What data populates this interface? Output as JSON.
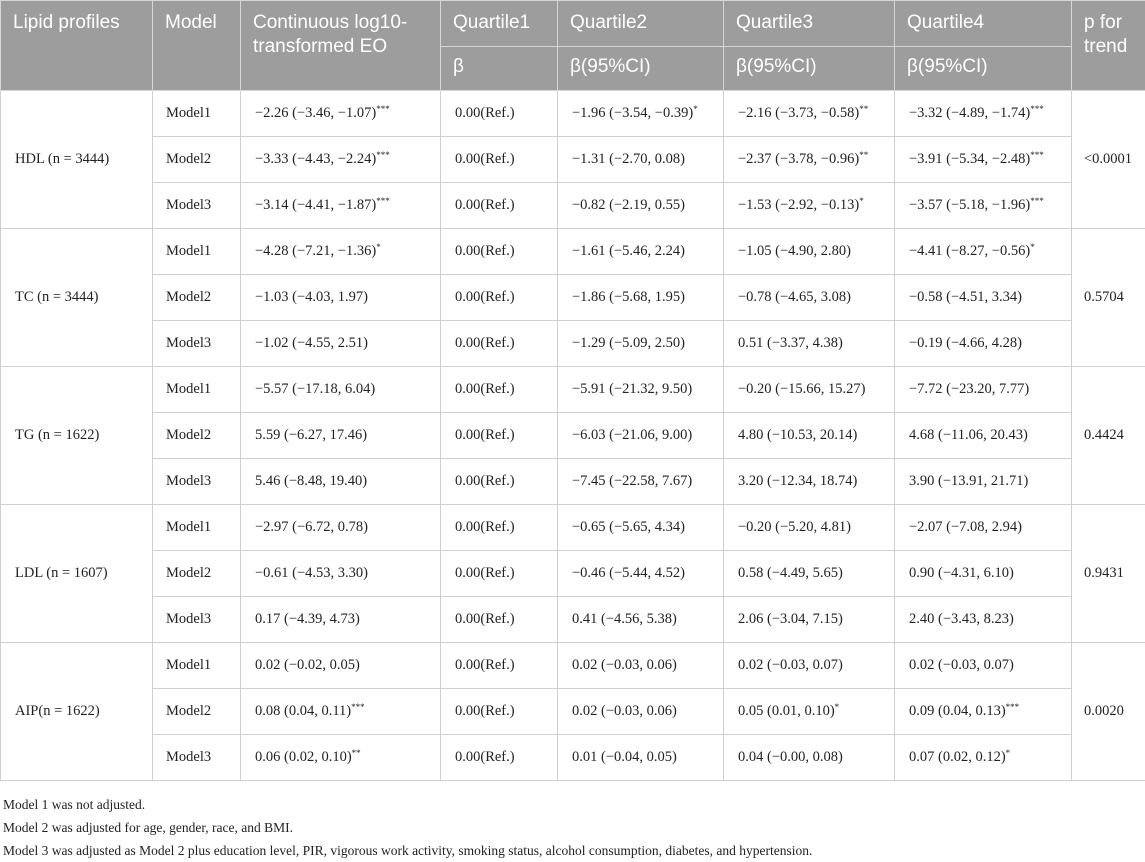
{
  "headers": {
    "lipid": "Lipid profiles",
    "model": "Model",
    "continuous": "Continuous log10-transformed EO",
    "q1": "Quartile1",
    "q2": "Quartile2",
    "q3": "Quartile3",
    "q4": "Quartile4",
    "ptrend": "p for trend",
    "q1_sub": "β",
    "q2_sub": "β(95%CI)",
    "q3_sub": "β(95%CI)",
    "q4_sub": "β(95%CI)"
  },
  "groups": [
    {
      "name": "HDL (n = 3444)",
      "p_trend": "<0.0001",
      "rows": [
        {
          "model": "Model1",
          "continuous": "−2.26 (−3.46, −1.07)",
          "continuous_sig": "***",
          "q1": "0.00(Ref.)",
          "q2": "−1.96 (−3.54, −0.39)",
          "q2_sig": "*",
          "q3": "−2.16 (−3.73, −0.58)",
          "q3_sig": "**",
          "q4": "−3.32 (−4.89, −1.74)",
          "q4_sig": "***"
        },
        {
          "model": "Model2",
          "continuous": "−3.33 (−4.43, −2.24)",
          "continuous_sig": "***",
          "q1": "0.00(Ref.)",
          "q2": "−1.31 (−2.70, 0.08)",
          "q2_sig": "",
          "q3": "−2.37 (−3.78, −0.96)",
          "q3_sig": "**",
          "q4": "−3.91 (−5.34, −2.48)",
          "q4_sig": "***"
        },
        {
          "model": "Model3",
          "continuous": "−3.14 (−4.41, −1.87)",
          "continuous_sig": "***",
          "q1": "0.00(Ref.)",
          "q2": "−0.82 (−2.19, 0.55)",
          "q2_sig": "",
          "q3": "−1.53 (−2.92, −0.13)",
          "q3_sig": "*",
          "q4": "−3.57 (−5.18, −1.96)",
          "q4_sig": "***"
        }
      ]
    },
    {
      "name": "TC (n = 3444)",
      "p_trend": "0.5704",
      "rows": [
        {
          "model": "Model1",
          "continuous": "−4.28 (−7.21, −1.36)",
          "continuous_sig": "*",
          "q1": "0.00(Ref.)",
          "q2": "−1.61 (−5.46, 2.24)",
          "q2_sig": "",
          "q3": "−1.05 (−4.90, 2.80)",
          "q3_sig": "",
          "q4": "−4.41 (−8.27, −0.56)",
          "q4_sig": "*"
        },
        {
          "model": "Model2",
          "continuous": "−1.03 (−4.03, 1.97)",
          "continuous_sig": "",
          "q1": "0.00(Ref.)",
          "q2": "−1.86 (−5.68, 1.95)",
          "q2_sig": "",
          "q3": "−0.78 (−4.65, 3.08)",
          "q3_sig": "",
          "q4": "−0.58 (−4.51, 3.34)",
          "q4_sig": ""
        },
        {
          "model": "Model3",
          "continuous": "−1.02 (−4.55, 2.51)",
          "continuous_sig": "",
          "q1": "0.00(Ref.)",
          "q2": "−1.29 (−5.09, 2.50)",
          "q2_sig": "",
          "q3": "0.51 (−3.37, 4.38)",
          "q3_sig": "",
          "q4": "−0.19 (−4.66, 4.28)",
          "q4_sig": ""
        }
      ]
    },
    {
      "name": "TG (n = 1622)",
      "p_trend": "0.4424",
      "rows": [
        {
          "model": "Model1",
          "continuous": "−5.57 (−17.18, 6.04)",
          "continuous_sig": "",
          "q1": "0.00(Ref.)",
          "q2": "−5.91 (−21.32, 9.50)",
          "q2_sig": "",
          "q3": "−0.20 (−15.66, 15.27)",
          "q3_sig": "",
          "q4": "−7.72 (−23.20, 7.77)",
          "q4_sig": ""
        },
        {
          "model": "Model2",
          "continuous": "5.59 (−6.27, 17.46)",
          "continuous_sig": "",
          "q1": "0.00(Ref.)",
          "q2": "−6.03 (−21.06, 9.00)",
          "q2_sig": "",
          "q3": "4.80 (−10.53, 20.14)",
          "q3_sig": "",
          "q4": "4.68 (−11.06, 20.43)",
          "q4_sig": ""
        },
        {
          "model": "Model3",
          "continuous": "5.46 (−8.48, 19.40)",
          "continuous_sig": "",
          "q1": "0.00(Ref.)",
          "q2": "−7.45 (−22.58, 7.67)",
          "q2_sig": "",
          "q3": "3.20 (−12.34, 18.74)",
          "q3_sig": "",
          "q4": "3.90 (−13.91, 21.71)",
          "q4_sig": ""
        }
      ]
    },
    {
      "name": "LDL (n = 1607)",
      "p_trend": "0.9431",
      "rows": [
        {
          "model": "Model1",
          "continuous": "−2.97 (−6.72, 0.78)",
          "continuous_sig": "",
          "q1": "0.00(Ref.)",
          "q2": "−0.65 (−5.65, 4.34)",
          "q2_sig": "",
          "q3": "−0.20 (−5.20, 4.81)",
          "q3_sig": "",
          "q4": "−2.07 (−7.08, 2.94)",
          "q4_sig": ""
        },
        {
          "model": "Model2",
          "continuous": "−0.61 (−4.53, 3.30)",
          "continuous_sig": "",
          "q1": "0.00(Ref.)",
          "q2": "−0.46 (−5.44, 4.52)",
          "q2_sig": "",
          "q3": "0.58 (−4.49, 5.65)",
          "q3_sig": "",
          "q4": "0.90 (−4.31, 6.10)",
          "q4_sig": ""
        },
        {
          "model": "Model3",
          "continuous": "0.17 (−4.39, 4.73)",
          "continuous_sig": "",
          "q1": "0.00(Ref.)",
          "q2": "0.41 (−4.56, 5.38)",
          "q2_sig": "",
          "q3": "2.06 (−3.04, 7.15)",
          "q3_sig": "",
          "q4": "2.40 (−3.43, 8.23)",
          "q4_sig": ""
        }
      ]
    },
    {
      "name": "AIP(n = 1622)",
      "p_trend": "0.0020",
      "rows": [
        {
          "model": "Model1",
          "continuous": "0.02 (−0.02, 0.05)",
          "continuous_sig": "",
          "q1": "0.00(Ref.)",
          "q2": "0.02 (−0.03, 0.06)",
          "q2_sig": "",
          "q3": "0.02 (−0.03, 0.07)",
          "q3_sig": "",
          "q4": "0.02 (−0.03, 0.07)",
          "q4_sig": ""
        },
        {
          "model": "Model2",
          "continuous": "0.08 (0.04, 0.11)",
          "continuous_sig": "***",
          "q1": "0.00(Ref.)",
          "q2": "0.02 (−0.03, 0.06)",
          "q2_sig": "",
          "q3": "0.05 (0.01, 0.10)",
          "q3_sig": "*",
          "q4": "0.09 (0.04, 0.13)",
          "q4_sig": "***"
        },
        {
          "model": "Model3",
          "continuous": "0.06 (0.02, 0.10)",
          "continuous_sig": "**",
          "q1": "0.00(Ref.)",
          "q2": "0.01 (−0.04, 0.05)",
          "q2_sig": "",
          "q3": "0.04 (−0.00, 0.08)",
          "q3_sig": "",
          "q4": "0.07 (0.02, 0.12)",
          "q4_sig": "*"
        }
      ]
    }
  ],
  "notes": [
    "Model 1 was not adjusted.",
    "Model 2 was adjusted for age, gender, race, and BMI.",
    "Model 3 was adjusted as Model 2 plus education level, PIR, vigorous work activity, smoking status, alcohol consumption, diabetes, and hypertension."
  ]
}
